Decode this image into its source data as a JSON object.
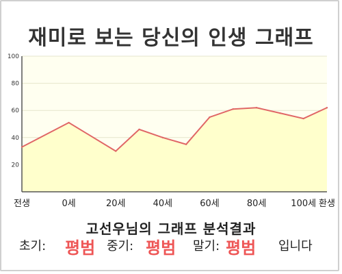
{
  "title": "재미로 보는 당신의 인생 그래프",
  "chart_data": {
    "type": "area",
    "x_categories": [
      "전생",
      "0세",
      "20세",
      "40세",
      "60세",
      "80세",
      "100세",
      "환생"
    ],
    "x": [
      -20,
      0,
      20,
      30,
      40,
      50,
      60,
      70,
      80,
      90,
      100,
      110
    ],
    "values": [
      33,
      51,
      30,
      46,
      40,
      35,
      55,
      61,
      62,
      58,
      54,
      62
    ],
    "ylim": [
      0,
      100
    ],
    "y_ticks": [
      20,
      40,
      60,
      80,
      100
    ],
    "grid": true,
    "colors": {
      "line": "#e06666",
      "fill": "#ffffcc",
      "plot_bg": "#fffff0"
    }
  },
  "summary": {
    "heading": "고선우님의 그래프 분석결과",
    "early_label": "초기:",
    "early_value": "평범",
    "middle_label": "중기:",
    "middle_value": "평범",
    "late_label": "말기:",
    "late_value": "평범",
    "suffix": "입니다"
  }
}
